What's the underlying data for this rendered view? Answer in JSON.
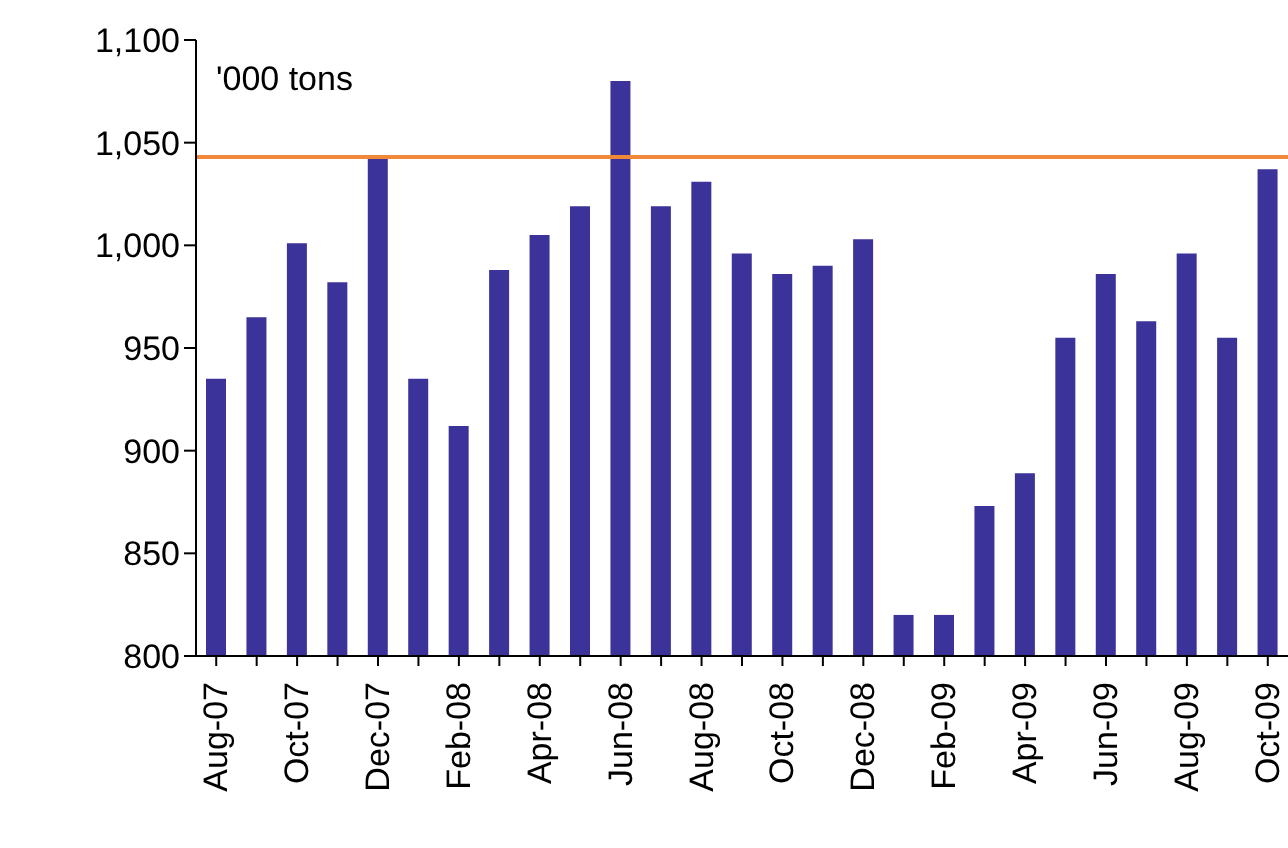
{
  "chart_data": {
    "type": "bar",
    "ylabel": "'000 tons",
    "categories": [
      "Aug-07",
      null,
      "Oct-07",
      null,
      "Dec-07",
      null,
      "Feb-08",
      null,
      "Apr-08",
      null,
      "Jun-08",
      null,
      "Aug-08",
      null,
      "Oct-08",
      null,
      "Dec-08",
      null,
      "Feb-09",
      null,
      "Apr-09",
      null,
      "Jun-09",
      null,
      "Aug-09",
      null,
      "Oct-09"
    ],
    "values": [
      935,
      965,
      1001,
      982,
      1043,
      935,
      912,
      988,
      1005,
      1019,
      1080,
      1019,
      1031,
      996,
      986,
      990,
      1003,
      820,
      820,
      873,
      889,
      955,
      986,
      963,
      996,
      955,
      1037
    ],
    "color": "#3b3399",
    "ylim": [
      800,
      1100
    ],
    "yticks": [
      800,
      850,
      900,
      950,
      {
        "value": 1000,
        "label": "1,000"
      },
      {
        "value": 1050,
        "label": "1,050"
      },
      {
        "value": 1100,
        "label": "1,100"
      }
    ],
    "ref_lines": [
      {
        "axis": "y",
        "value": 1043,
        "color": "#f0883a"
      }
    ],
    "grid": false,
    "legend": false
  }
}
